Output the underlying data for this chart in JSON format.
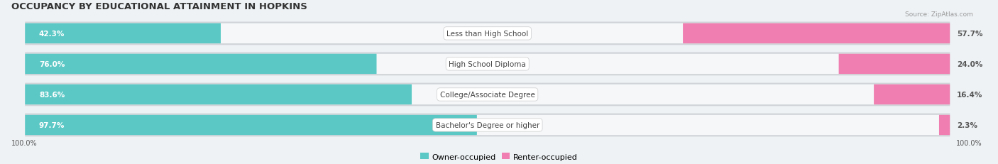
{
  "title": "OCCUPANCY BY EDUCATIONAL ATTAINMENT IN HOPKINS",
  "source": "Source: ZipAtlas.com",
  "categories": [
    "Less than High School",
    "High School Diploma",
    "College/Associate Degree",
    "Bachelor's Degree or higher"
  ],
  "owner_values": [
    42.3,
    76.0,
    83.6,
    97.7
  ],
  "renter_values": [
    57.7,
    24.0,
    16.4,
    2.3
  ],
  "owner_color": "#5BC8C5",
  "renter_color": "#F07EB0",
  "background_color": "#eef2f5",
  "bar_background": "#e0e4e8",
  "bar_background_inner": "#ffffff",
  "bar_height": 0.62,
  "title_fontsize": 9.5,
  "value_fontsize": 7.5,
  "cat_fontsize": 7.5,
  "axis_label_fontsize": 7,
  "legend_fontsize": 8,
  "x_left_label": "100.0%",
  "x_right_label": "100.0%"
}
